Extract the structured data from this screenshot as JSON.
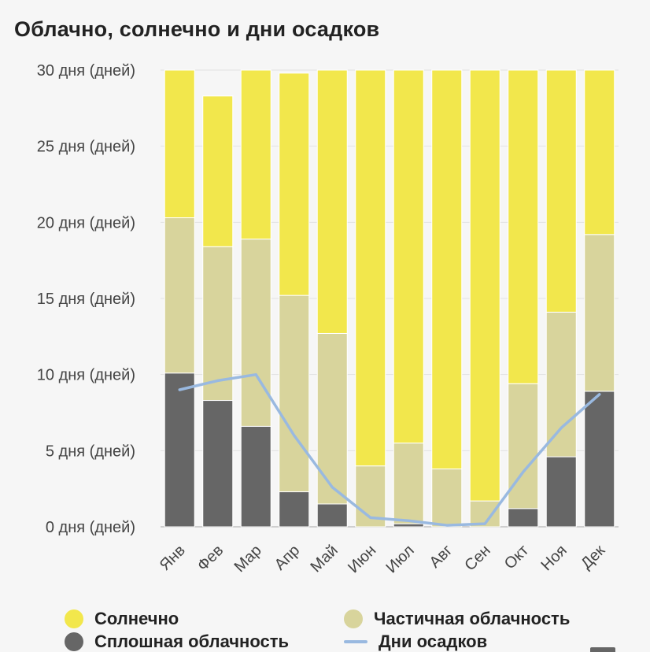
{
  "chart_data": {
    "type": "bar",
    "stacked": true,
    "title": "Облачно, солнечно и дни осадков",
    "categories": [
      "Янв",
      "Фев",
      "Мар",
      "Апр",
      "Май",
      "Июн",
      "Июл",
      "Авг",
      "Сен",
      "Окт",
      "Ноя",
      "Дек"
    ],
    "y_ticks": [
      "0 дня (дней)",
      "5 дня (дней)",
      "10 дня (дней)",
      "15 дня (дней)",
      "20 дня (дней)",
      "25 дня (дней)",
      "30 дня (дней)"
    ],
    "ylim": [
      0,
      30
    ],
    "grid": true,
    "legend_position": "bottom",
    "series": [
      {
        "name": "Сплошная облачность",
        "color": "#666666",
        "values": [
          10.1,
          8.3,
          6.6,
          2.3,
          1.5,
          0.0,
          0.2,
          0.0,
          0.0,
          1.2,
          4.6,
          8.9
        ]
      },
      {
        "name": "Частичная облачность",
        "color": "#d8d49c",
        "values": [
          10.2,
          10.1,
          12.3,
          12.9,
          11.2,
          4.0,
          5.3,
          3.8,
          1.7,
          8.2,
          9.5,
          10.3
        ]
      },
      {
        "name": "Солнечно",
        "color": "#f2e74c",
        "values": [
          9.7,
          9.9,
          11.1,
          14.6,
          17.3,
          26.0,
          24.5,
          26.2,
          28.3,
          20.6,
          15.9,
          10.8
        ]
      }
    ],
    "line_series": {
      "name": "Дни осадков",
      "color": "#99b9e0",
      "values": [
        9.0,
        9.6,
        10.0,
        6.0,
        2.6,
        0.6,
        0.4,
        0.1,
        0.2,
        3.6,
        6.5,
        8.7
      ]
    },
    "legend": [
      {
        "label": "Солнечно",
        "shape": "dot",
        "color": "#f2e74c"
      },
      {
        "label": "Частичная облачность",
        "shape": "dot",
        "color": "#d8d49c"
      },
      {
        "label": "Сплошная облачность",
        "shape": "dot",
        "color": "#666666"
      },
      {
        "label": "Дни осадков",
        "shape": "line",
        "color": "#99b9e0"
      }
    ]
  }
}
